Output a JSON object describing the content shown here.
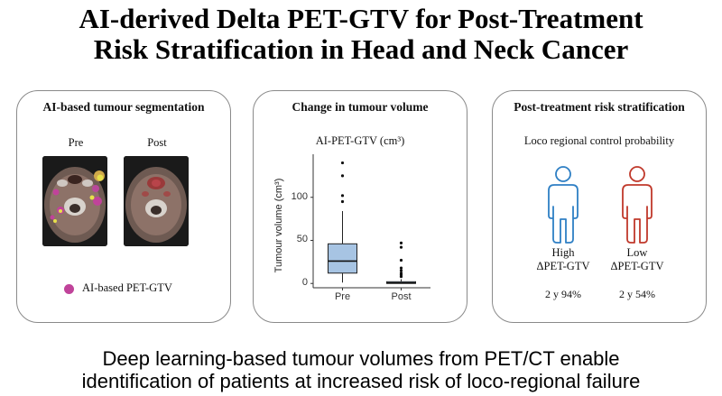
{
  "title": {
    "line1": "AI-derived Delta PET-GTV for Post-Treatment",
    "line2": "Risk Stratification in Head and Neck Cancer"
  },
  "panel1": {
    "title": "AI-based tumour segmentation",
    "pre_label": "Pre",
    "post_label": "Post",
    "legend_label": "AI-based PET-GTV",
    "legend_color": "#c0439a"
  },
  "panel2": {
    "title": "Change in tumour volume",
    "subtitle": "AI-PET-GTV (cm³)",
    "chart_data": {
      "type": "boxplot",
      "ylabel": "Tumour volume (cm³)",
      "xlabel": "",
      "categories": [
        "Pre",
        "Post"
      ],
      "ylim": [
        -5,
        150
      ],
      "yticks": [
        "0",
        "50",
        "100"
      ],
      "box_color": "#a7c4e3",
      "boxes": [
        {
          "name": "Pre",
          "whisker_low": 1,
          "q1": 12,
          "median": 26,
          "q3": 46,
          "whisker_high": 84,
          "outliers": [
            95,
            102,
            125,
            140
          ]
        },
        {
          "name": "Post",
          "whisker_low": 0,
          "q1": 0,
          "median": 0.5,
          "q3": 2,
          "whisker_high": 5,
          "outliers": [
            8,
            10,
            12,
            15,
            18,
            27,
            42,
            47
          ]
        }
      ]
    }
  },
  "panel3": {
    "title": "Post-treatment risk stratification",
    "subtitle": "Loco regional control probability",
    "groups": [
      {
        "level": "High",
        "metric": "ΔPET-GTV",
        "value": "2 y 94%",
        "color": "#2e7fc4"
      },
      {
        "level": "Low",
        "metric": "ΔPET-GTV",
        "value": "2 y 54%",
        "color": "#c0392b"
      }
    ]
  },
  "footer": {
    "line1": "Deep learning-based tumour volumes from PET/CT enable",
    "line2": "identification of patients at increased risk of loco-regional failure"
  }
}
